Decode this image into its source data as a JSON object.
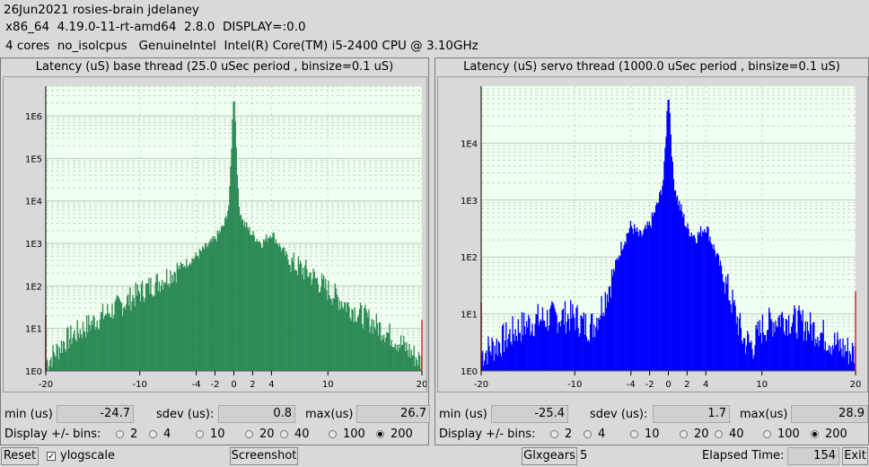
{
  "header": {
    "line1": "26Jun2021 rosies-brain jdelaney",
    "line2": "x86_64  4.19.0-11-rt-amd64  2.8.0  DISPLAY=:0.0",
    "line3": "4 cores  no_isolcpus   GenuineIntel  Intel(R) Core(TM) i5-2400 CPU @ 3.10GHz"
  },
  "panels": [
    {
      "title": "Latency (uS) base thread (25.0 uSec period , binsize=0.1 uS)",
      "color": "#2e8b57",
      "min_label": "min (us)",
      "min_value": "-24.7",
      "sdev_label": "sdev (us):",
      "sdev_value": "0.8",
      "max_label": "max(us)",
      "max_value": "26.7"
    },
    {
      "title": "Latency (uS) servo thread (1000.0 uSec period , binsize=0.1 uS)",
      "color": "#0000ff",
      "min_label": "min (us)",
      "min_value": "-25.4",
      "sdev_label": "sdev (us):",
      "sdev_value": "1.7",
      "max_label": "max(us)",
      "max_value": "28.9"
    }
  ],
  "bins": {
    "label": "Display +/- bins:",
    "options": [
      "2",
      "4",
      "10",
      "20",
      "40",
      "100",
      "200"
    ],
    "selected": "200"
  },
  "footer": {
    "reset_label": "Reset",
    "ylog_label": "ylogscale",
    "screenshot_label": "Screenshot",
    "glxgears_label": "Glxgears",
    "glxgears_count": "5",
    "elapsed_label": "Elapsed Time:",
    "elapsed_value": "154",
    "exit_label": "Exit"
  },
  "chart_data": [
    {
      "type": "bar",
      "title": "Latency (uS) base thread (25.0 uSec period , binsize=0.1 uS)",
      "xlim": [
        -20,
        20
      ],
      "x_ticks": [
        "-20",
        "-10",
        "-4",
        "-2",
        "0",
        "2",
        "4",
        "10",
        "20"
      ],
      "y_scale": "log",
      "y_ticks": [
        "1E0",
        "1E1",
        "1E2",
        "1E3",
        "1E4",
        "1E5",
        "1E6"
      ],
      "ylim_log10": [
        0,
        6.7
      ],
      "grid": true,
      "series_color": "#2e8b57",
      "profile": {
        "x": [
          -20,
          -19.5,
          -18,
          -16,
          -14,
          -12,
          -10,
          -8,
          -6,
          -4,
          -3,
          -2,
          -1,
          -0.5,
          0,
          0.5,
          1,
          2,
          3,
          4,
          6,
          8,
          10,
          12,
          14,
          16,
          18,
          19.5,
          20
        ],
        "log10": [
          0.2,
          0.3,
          0.7,
          1.0,
          1.3,
          1.55,
          1.85,
          2.1,
          2.4,
          2.7,
          2.9,
          3.1,
          3.45,
          3.95,
          6.7,
          3.9,
          3.5,
          3.2,
          3.0,
          3.25,
          2.55,
          2.3,
          1.9,
          1.55,
          1.25,
          0.95,
          0.6,
          0.3,
          0.2
        ]
      },
      "edge_spikes": [
        {
          "x": -20,
          "log10": 1.3
        },
        {
          "x": 20,
          "log10": 1.2
        }
      ]
    },
    {
      "type": "bar",
      "title": "Latency (uS) servo thread (1000.0 uSec period , binsize=0.1 uS)",
      "xlim": [
        -20,
        20
      ],
      "x_ticks": [
        "-20",
        "-10",
        "-4",
        "-2",
        "0",
        "2",
        "4",
        "10",
        "20"
      ],
      "y_scale": "log",
      "y_ticks": [
        "1E0",
        "1E1",
        "1E2",
        "1E3",
        "1E4"
      ],
      "ylim_log10": [
        0,
        5
      ],
      "grid": true,
      "series_color": "#0000ff",
      "profile": {
        "x": [
          -20,
          -18,
          -16,
          -14,
          -12,
          -10,
          -9,
          -8,
          -7,
          -6,
          -5,
          -4,
          -3,
          -2,
          -1,
          -0.5,
          0,
          0.5,
          1,
          2,
          3,
          4,
          5,
          6,
          7,
          8,
          9,
          10,
          12,
          14,
          16,
          18,
          20
        ],
        "log10": [
          0.3,
          0.5,
          0.75,
          0.9,
          0.95,
          0.95,
          0.8,
          0.8,
          1.2,
          1.65,
          2.2,
          2.55,
          2.35,
          2.55,
          3.0,
          3.4,
          5.0,
          3.4,
          3.0,
          2.5,
          2.35,
          2.55,
          2.1,
          1.6,
          1.1,
          0.55,
          0.45,
          0.75,
          0.95,
          0.85,
          0.7,
          0.45,
          0.3
        ]
      },
      "edge_spikes": [
        {
          "x": -20,
          "log10": 1.2
        },
        {
          "x": 20,
          "log10": 1.4
        }
      ]
    }
  ]
}
